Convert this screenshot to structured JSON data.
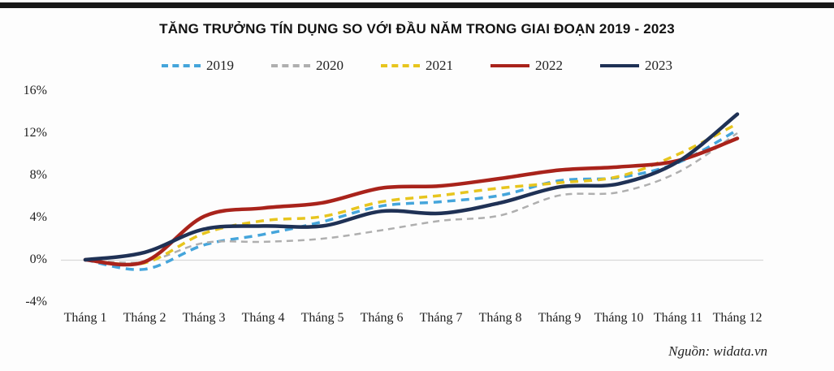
{
  "title": "TĂNG TRƯỞNG TÍN DỤNG SO VỚI ĐẦU NĂM TRONG GIAI ĐOẠN 2019 - 2023",
  "source": "Nguồn: widata.vn",
  "colors": {
    "grid_zero_line": "#d9d9d9",
    "top_bar": "#181818"
  },
  "chart_data": {
    "type": "line",
    "title": "TĂNG TRƯỞNG TÍN DỤNG SO VỚI ĐẦU NĂM TRONG GIAI ĐOẠN 2019 - 2023",
    "xlabel": "",
    "ylabel": "",
    "unit": "%",
    "ylim": [
      -4,
      16
    ],
    "yticks": [
      16,
      12,
      8,
      4,
      0,
      -4
    ],
    "ytick_labels": [
      "16%",
      "12%",
      "8%",
      "4%",
      "0%",
      "-4%"
    ],
    "grid": "zero-line-only",
    "legend_position": "top",
    "categories": [
      "Tháng 1",
      "Tháng 2",
      "Tháng 3",
      "Tháng 4",
      "Tháng 5",
      "Tháng 6",
      "Tháng 7",
      "Tháng 8",
      "Tháng 9",
      "Tháng 10",
      "Tháng 11",
      "Tháng 12"
    ],
    "series": [
      {
        "name": "2019",
        "color": "#45A5DB",
        "style": "dashed",
        "width": 3.5,
        "values": [
          0.0,
          -0.9,
          1.4,
          2.4,
          3.6,
          5.1,
          5.5,
          6.1,
          7.5,
          7.8,
          9.2,
          12.3
        ]
      },
      {
        "name": "2020",
        "color": "#AFAFAF",
        "style": "dashed",
        "width": 2.5,
        "values": [
          0.0,
          -0.2,
          1.6,
          1.7,
          2.0,
          2.8,
          3.7,
          4.2,
          6.1,
          6.4,
          8.3,
          12.0
        ]
      },
      {
        "name": "2021",
        "color": "#E7C51E",
        "style": "dashed",
        "width": 3.5,
        "values": [
          0.0,
          -0.3,
          2.5,
          3.7,
          4.1,
          5.5,
          6.1,
          6.8,
          7.3,
          7.9,
          10.0,
          12.9
        ]
      },
      {
        "name": "2022",
        "color": "#A9231B",
        "style": "solid",
        "width": 4.5,
        "values": [
          0.0,
          -0.2,
          4.1,
          4.9,
          5.4,
          6.8,
          7.0,
          7.7,
          8.5,
          8.8,
          9.4,
          11.5
        ]
      },
      {
        "name": "2023",
        "color": "#1F3155",
        "style": "solid",
        "width": 4.5,
        "values": [
          0.0,
          0.7,
          2.9,
          3.2,
          3.2,
          4.6,
          4.4,
          5.4,
          6.9,
          7.2,
          9.3,
          13.8
        ]
      }
    ]
  }
}
